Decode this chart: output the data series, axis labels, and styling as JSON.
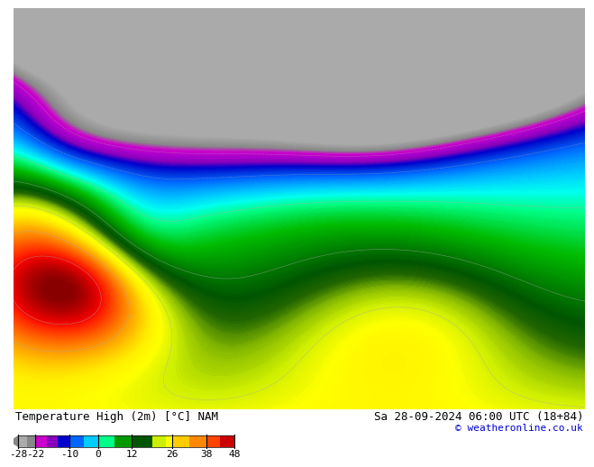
{
  "title_left": "Temperature High (2m) [°C] NAM",
  "title_right": "Sa 28-09-2024 06:00 UTC (18+84)",
  "credit": "© weatheronline.co.uk",
  "colorbar_ticks": [
    -28,
    -22,
    -10,
    0,
    12,
    26,
    38,
    48
  ],
  "bg_color": "#ffffff",
  "font_size_title": 9,
  "font_size_credit": 8,
  "font_size_ticks": 8
}
